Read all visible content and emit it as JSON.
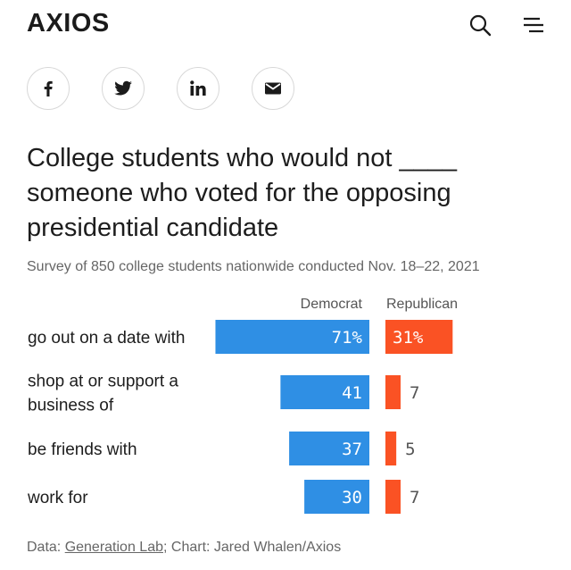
{
  "header": {
    "logo": "AXIOS",
    "search_icon": "search-icon",
    "menu_icon": "menu-icon"
  },
  "share": {
    "items": [
      {
        "name": "facebook",
        "icon": "facebook-icon"
      },
      {
        "name": "twitter",
        "icon": "twitter-icon"
      },
      {
        "name": "linkedin",
        "icon": "linkedin-icon"
      },
      {
        "name": "email",
        "icon": "email-icon"
      }
    ]
  },
  "colors": {
    "democrat": "#2f8fe4",
    "republican": "#fa5224",
    "label_text": "#ffffff",
    "value_text": "#555555"
  },
  "chart_data": {
    "type": "bar",
    "title": "College students who would not ____ someone who voted for the opposing presidential candidate",
    "subtitle": "Survey of 850 college students nationwide conducted Nov. 18–22, 2021",
    "categories": [
      [
        "go out on a date with"
      ],
      [
        "shop at or support a",
        "business of"
      ],
      [
        "be friends with"
      ],
      [
        "work for"
      ]
    ],
    "series": [
      {
        "name": "Democrat",
        "values": [
          71,
          41,
          37,
          30
        ],
        "labels": [
          "71%",
          "41",
          "37",
          "30"
        ]
      },
      {
        "name": "Republican",
        "values": [
          31,
          7,
          5,
          7
        ],
        "labels": [
          "31%",
          "7",
          "5",
          "7"
        ]
      }
    ],
    "unit": "percent",
    "layout": "diverging bars, Democrat extends left, Republican extends right"
  },
  "footer": {
    "data_prefix": "Data: ",
    "source_link": "Generation Lab",
    "chart_credit": "; Chart: Jared Whalen/Axios"
  }
}
